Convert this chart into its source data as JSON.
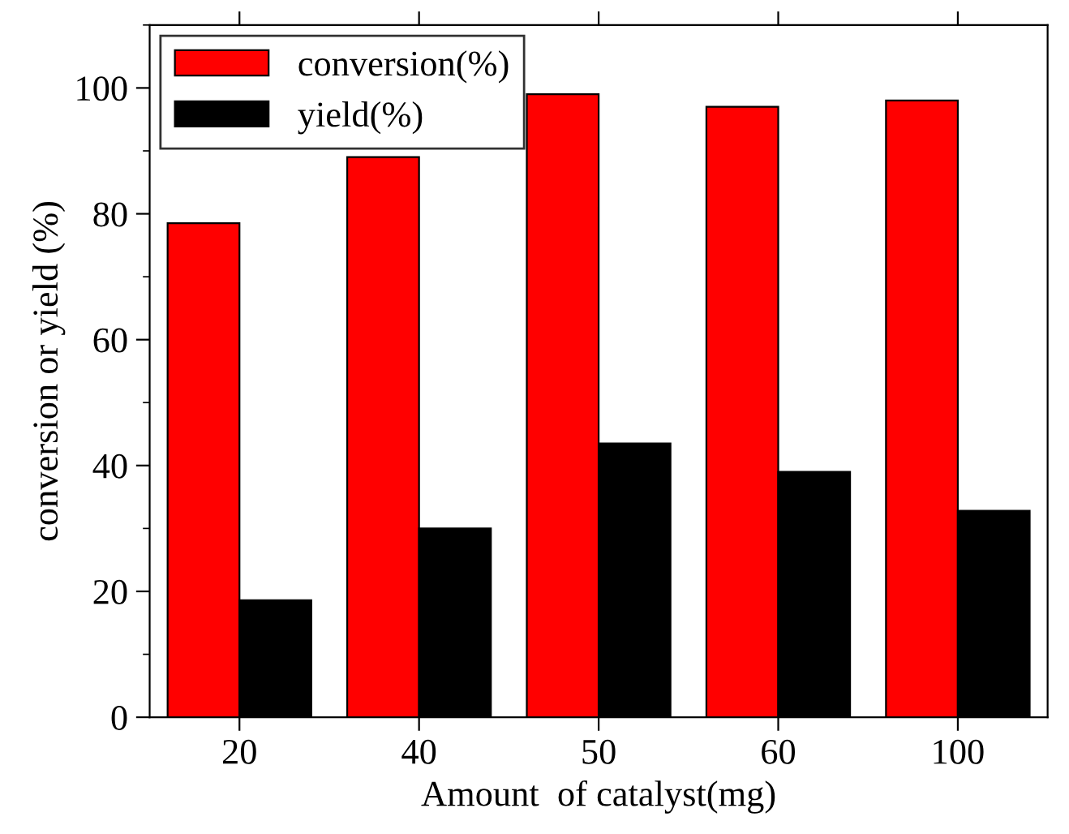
{
  "chart_data": {
    "type": "bar",
    "xlabel": "Amount  of catalyst(mg)",
    "ylabel": "conversion or yield (%)",
    "categories": [
      "20",
      "40",
      "50",
      "60",
      "100"
    ],
    "series": [
      {
        "name": "conversion(%)",
        "color": "#ff0000",
        "values": [
          78.5,
          89,
          99,
          97,
          98
        ]
      },
      {
        "name": "yield(%)",
        "color": "#000000",
        "values": [
          18.6,
          30,
          43.5,
          39,
          32.8
        ]
      }
    ],
    "ylim": [
      0,
      110
    ],
    "yticks": [
      0,
      20,
      40,
      60,
      80,
      100
    ],
    "grid": false,
    "legend": "top left"
  }
}
